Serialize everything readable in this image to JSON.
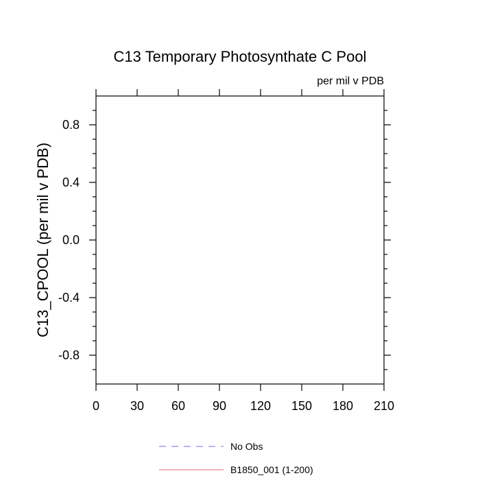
{
  "chart_data": {
    "type": "line",
    "title": "C13 Temporary Photosynthate C Pool",
    "units_label": "per mil v PDB",
    "ylabel": "C13_CPOOL  (per mil v PDB)",
    "xlabel": "",
    "xlim": [
      0,
      210
    ],
    "ylim": [
      -1.0,
      1.0
    ],
    "x_ticks": [
      0,
      30,
      60,
      90,
      120,
      150,
      180,
      210
    ],
    "x_tick_labels": [
      "0",
      "30",
      "60",
      "90",
      "120",
      "150",
      "180",
      "210"
    ],
    "y_ticks": [
      -0.8,
      -0.4,
      0.0,
      0.4,
      0.8
    ],
    "y_tick_labels": [
      "-0.8",
      "-0.4",
      "0.0",
      "0.4",
      "0.8"
    ],
    "grid": false,
    "legend_position": "bottom",
    "series": [
      {
        "name": "No Obs",
        "color": "#6a6af0",
        "dash": "dashed",
        "values": []
      },
      {
        "name": "B1850_001 (1-200)",
        "color": "#f06a6a",
        "dash": "solid",
        "values": []
      }
    ]
  }
}
